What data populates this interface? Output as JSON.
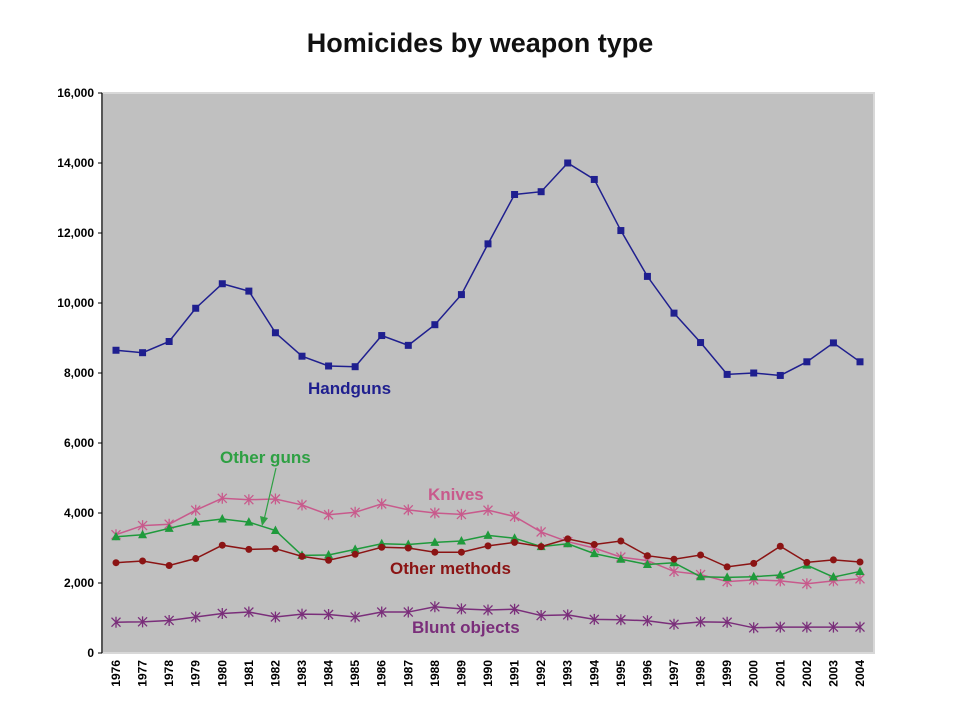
{
  "chart_data": {
    "type": "line",
    "title": "Homicides by weapon type",
    "xlabel": "",
    "ylabel": "",
    "ylim": [
      0,
      16000
    ],
    "y_ticks": [
      0,
      2000,
      4000,
      6000,
      8000,
      10000,
      12000,
      14000,
      16000
    ],
    "y_tick_labels": [
      "0",
      "2,000",
      "4,000",
      "6,000",
      "8,000",
      "10,000",
      "12,000",
      "14,000",
      "16,000"
    ],
    "categories": [
      "1976",
      "1977",
      "1978",
      "1979",
      "1980",
      "1981",
      "1982",
      "1983",
      "1984",
      "1985",
      "1986",
      "1987",
      "1988",
      "1989",
      "1990",
      "1991",
      "1992",
      "1993",
      "1994",
      "1995",
      "1996",
      "1997",
      "1998",
      "1999",
      "2000",
      "2001",
      "2002",
      "2003",
      "2004"
    ],
    "grid": false,
    "plot_background": "#c0c0c0",
    "series": [
      {
        "name": "Handguns",
        "color": "#1f1f8f",
        "marker": "square",
        "values": [
          8650,
          8580,
          8900,
          9850,
          10550,
          10340,
          9150,
          8480,
          8200,
          8180,
          9070,
          8790,
          9380,
          10240,
          11690,
          13100,
          13180,
          14000,
          13530,
          12070,
          10760,
          9710,
          8870,
          7960,
          8000,
          7930,
          8320,
          8860,
          8320
        ]
      },
      {
        "name": "Knives",
        "color": "#c85a8c",
        "marker": "star",
        "values": [
          3380,
          3640,
          3680,
          4080,
          4420,
          4380,
          4400,
          4230,
          3950,
          4020,
          4260,
          4090,
          4000,
          3960,
          4080,
          3900,
          3460,
          3180,
          3000,
          2740,
          2640,
          2330,
          2240,
          2040,
          2090,
          2060,
          1980,
          2060,
          2120
        ]
      },
      {
        "name": "Other guns",
        "color": "#1f9a3c",
        "marker": "triangle",
        "values": [
          3320,
          3380,
          3560,
          3740,
          3830,
          3740,
          3500,
          2790,
          2800,
          2960,
          3120,
          3100,
          3160,
          3200,
          3360,
          3280,
          3040,
          3120,
          2840,
          2680,
          2530,
          2580,
          2180,
          2160,
          2180,
          2230,
          2510,
          2170,
          2330
        ]
      },
      {
        "name": "Other methods",
        "color": "#8b1414",
        "marker": "circle",
        "values": [
          2580,
          2630,
          2500,
          2700,
          3080,
          2960,
          2980,
          2760,
          2650,
          2820,
          3020,
          3000,
          2880,
          2880,
          3060,
          3160,
          3040,
          3260,
          3100,
          3200,
          2780,
          2680,
          2800,
          2460,
          2560,
          3050,
          2590,
          2660,
          2600
        ]
      },
      {
        "name": "Blunt objects",
        "color": "#7a2e7a",
        "marker": "star",
        "values": [
          880,
          890,
          930,
          1030,
          1130,
          1170,
          1030,
          1110,
          1100,
          1030,
          1170,
          1170,
          1320,
          1260,
          1230,
          1250,
          1070,
          1090,
          960,
          950,
          920,
          820,
          890,
          880,
          720,
          740,
          740,
          740,
          740
        ]
      }
    ],
    "annotations": [
      {
        "text": "Handguns",
        "series": "Handguns",
        "color": "#1f1f8f"
      },
      {
        "text": "Other guns",
        "series": "Other guns",
        "color": "#2ea043"
      },
      {
        "text": "Knives",
        "series": "Knives",
        "color": "#c85a8c"
      },
      {
        "text": "Other methods",
        "series": "Other methods",
        "color": "#8b1414"
      },
      {
        "text": "Blunt objects",
        "series": "Blunt objects",
        "color": "#7a2e7a"
      }
    ]
  }
}
